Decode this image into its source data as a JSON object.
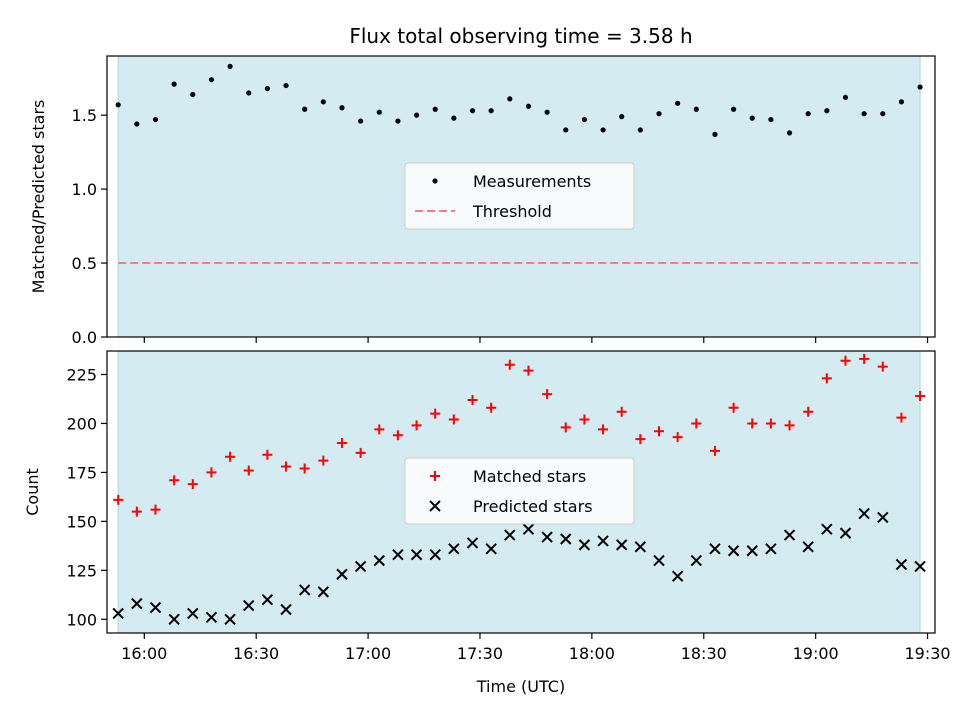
{
  "chart_data": {
    "type": "scatter",
    "title": "Flux total observing time = 3.58 h",
    "xlabel": "Time (UTC)",
    "x_ticks": [
      "16:00",
      "16:30",
      "17:00",
      "17:30",
      "18:00",
      "18:30",
      "19:00",
      "19:30"
    ],
    "x_range": [
      "15:50",
      "19:32"
    ],
    "shaded_interval": [
      "15:53",
      "19:28"
    ],
    "shade_color": "#d4ebf1",
    "x": [
      "15:53",
      "15:58",
      "16:03",
      "16:08",
      "16:13",
      "16:18",
      "16:23",
      "16:28",
      "16:33",
      "16:38",
      "16:43",
      "16:48",
      "16:53",
      "16:58",
      "17:03",
      "17:08",
      "17:13",
      "17:18",
      "17:23",
      "17:28",
      "17:33",
      "17:38",
      "17:43",
      "17:48",
      "17:53",
      "17:58",
      "18:03",
      "18:08",
      "18:13",
      "18:18",
      "18:23",
      "18:28",
      "18:33",
      "18:38",
      "18:43",
      "18:48",
      "18:53",
      "18:58",
      "19:03",
      "19:08",
      "19:13",
      "19:18",
      "19:23",
      "19:28"
    ],
    "panels": [
      {
        "ylabel": "Matched/Predicted stars",
        "ylim": [
          0,
          1.9
        ],
        "y_ticks": [
          0.0,
          0.5,
          1.0,
          1.5
        ],
        "y_tick_labels": [
          "0.0",
          "0.5",
          "1.0",
          "1.5"
        ],
        "grid": false,
        "legend_position": "center",
        "series": [
          {
            "name": "Measurements",
            "marker": "dot",
            "color": "#000000",
            "values": [
              1.57,
              1.44,
              1.47,
              1.71,
              1.64,
              1.74,
              1.83,
              1.65,
              1.68,
              1.7,
              1.54,
              1.59,
              1.55,
              1.46,
              1.52,
              1.46,
              1.5,
              1.54,
              1.48,
              1.53,
              1.53,
              1.61,
              1.56,
              1.52,
              1.4,
              1.47,
              1.4,
              1.49,
              1.4,
              1.51,
              1.58,
              1.54,
              1.37,
              1.54,
              1.48,
              1.47,
              1.38,
              1.51,
              1.53,
              1.62,
              1.51,
              1.51,
              1.59,
              1.69
            ]
          },
          {
            "name": "Threshold",
            "marker": "dashed-line",
            "color": "#f08080",
            "values": [
              0.5,
              0.5
            ]
          }
        ]
      },
      {
        "ylabel": "Count",
        "ylim": [
          93,
          237
        ],
        "y_ticks": [
          100,
          125,
          150,
          175,
          200,
          225
        ],
        "y_tick_labels": [
          "100",
          "125",
          "150",
          "175",
          "200",
          "225"
        ],
        "grid": false,
        "legend_position": "center",
        "series": [
          {
            "name": "Matched stars",
            "marker": "plus",
            "color": "#ff0000",
            "values": [
              161,
              155,
              156,
              171,
              169,
              175,
              183,
              176,
              184,
              178,
              177,
              181,
              190,
              185,
              197,
              194,
              199,
              205,
              202,
              212,
              208,
              230,
              227,
              215,
              198,
              202,
              197,
              206,
              192,
              196,
              193,
              200,
              186,
              208,
              200,
              200,
              199,
              206,
              223,
              232,
              233,
              229,
              203,
              214
            ]
          },
          {
            "name": "Predicted stars",
            "marker": "x",
            "color": "#000000",
            "values": [
              103,
              108,
              106,
              100,
              103,
              101,
              100,
              107,
              110,
              105,
              115,
              114,
              123,
              127,
              130,
              133,
              133,
              133,
              136,
              139,
              136,
              143,
              146,
              142,
              141,
              138,
              140,
              138,
              137,
              130,
              122,
              130,
              136,
              135,
              135,
              136,
              143,
              137,
              146,
              144,
              154,
              152,
              128,
              127
            ]
          }
        ]
      }
    ]
  }
}
